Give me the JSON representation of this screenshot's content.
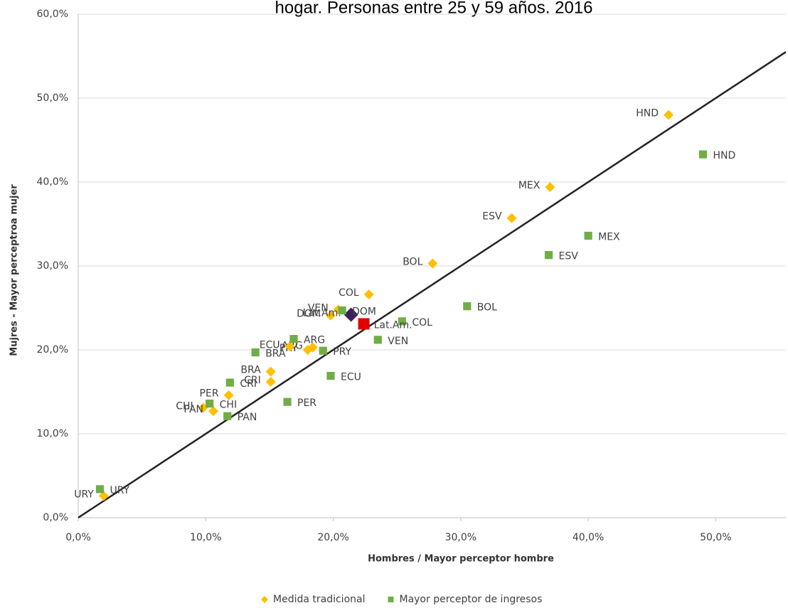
{
  "chart_data": {
    "type": "scatter",
    "title": "hogar. Personas entre 25 y 59 años. 2016",
    "x_label": "Hombres / Mayor perceptor hombre",
    "y_label": "Mujres - Mayor perceptroa mujer",
    "xlim": [
      0,
      55.5
    ],
    "ylim": [
      0,
      60
    ],
    "xticks": [
      {
        "value": 0,
        "label": "0,0%"
      },
      {
        "value": 10,
        "label": "10,0%"
      },
      {
        "value": 20,
        "label": "20,0%"
      },
      {
        "value": 30,
        "label": "30,0%"
      },
      {
        "value": 40,
        "label": "40,0%"
      },
      {
        "value": 50,
        "label": "50,0%"
      }
    ],
    "yticks": [
      {
        "value": 0,
        "label": "0,0%"
      },
      {
        "value": 10,
        "label": "10,0%"
      },
      {
        "value": 20,
        "label": "20,0%"
      },
      {
        "value": 30,
        "label": "30,0%"
      },
      {
        "value": 40,
        "label": "40,0%"
      },
      {
        "value": 50,
        "label": "50,0%"
      },
      {
        "value": 60,
        "label": "60,0%"
      }
    ],
    "grid": true,
    "legend": "bottom",
    "reference_line": {
      "x": [
        0,
        55.5
      ],
      "y": [
        0,
        55.5
      ],
      "color": "#222222"
    },
    "series": [
      {
        "name": "Medida tradicional",
        "color": "#ffc000",
        "marker": "diamond",
        "highlight_index": 7,
        "highlight_color": "#3f1f5f",
        "labels": [
          "HND",
          "MEX",
          "ESV",
          "BOL",
          "COL",
          "VEN",
          "DOM",
          "Lat.Am.",
          "ARG",
          "PRY",
          "ECU",
          "BRA",
          "CRI",
          "PER",
          "CHI",
          "PAN",
          "URY"
        ],
        "x": [
          46.3,
          37.0,
          34.0,
          27.8,
          22.8,
          20.4,
          19.8,
          21.4,
          18.4,
          18.0,
          16.6,
          15.1,
          15.1,
          11.8,
          9.8,
          10.6,
          2.0
        ],
        "values": [
          48.0,
          39.4,
          35.7,
          30.3,
          26.6,
          24.8,
          24.1,
          24.2,
          20.3,
          20.0,
          20.4,
          17.4,
          16.2,
          14.6,
          13.1,
          12.7,
          2.6
        ]
      },
      {
        "name": "Mayor perceptor de ingresos",
        "color": "#70ad47",
        "marker": "square",
        "highlight_index": 7,
        "highlight_color": "#e00000",
        "labels": [
          "HND",
          "MEX",
          "ESV",
          "BOL",
          "COL",
          "VEN",
          "DOM",
          "Lat.Am.",
          "PRY",
          "ECU",
          "ARG",
          "BRA",
          "PER",
          "CRI",
          "CHI",
          "PAN",
          "URY"
        ],
        "x": [
          49.0,
          40.0,
          36.9,
          30.5,
          25.4,
          23.5,
          20.7,
          22.4,
          19.2,
          19.8,
          16.9,
          13.9,
          16.4,
          11.9,
          10.3,
          11.7,
          1.7
        ],
        "values": [
          43.3,
          33.6,
          31.3,
          25.2,
          23.4,
          21.2,
          24.7,
          23.1,
          19.9,
          16.9,
          21.3,
          19.7,
          13.8,
          16.1,
          13.6,
          12.1,
          3.4
        ]
      }
    ]
  }
}
